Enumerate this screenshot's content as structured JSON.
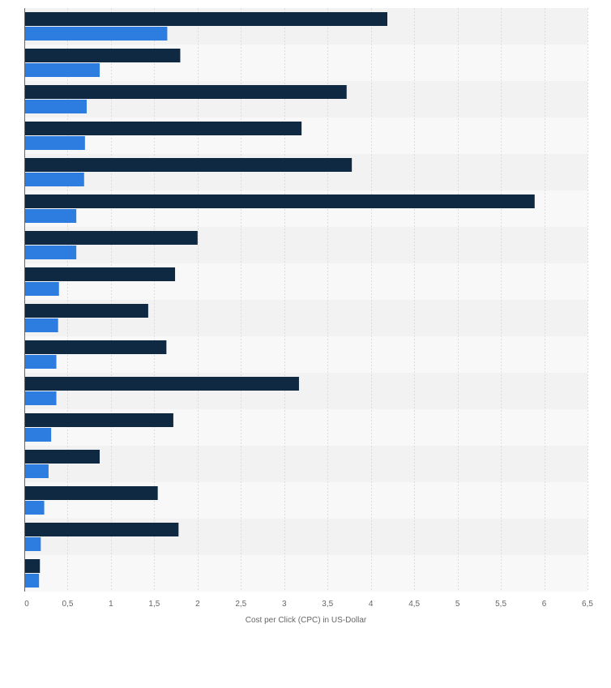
{
  "chart_data": {
    "type": "bar",
    "orientation": "horizontal",
    "xlabel": "Cost per Click (CPC) in US-Dollar",
    "xlim": [
      0,
      6.5
    ],
    "x_ticks": [
      "0",
      "0,5",
      "1",
      "1,5",
      "2",
      "2,5",
      "3",
      "3,5",
      "4",
      "4,5",
      "5",
      "5,5",
      "6",
      "6,5"
    ],
    "grid": "vertical",
    "series": [
      {
        "color": "#0f2942",
        "values": [
          4.19,
          1.8,
          3.72,
          3.2,
          3.78,
          5.89,
          2.0,
          1.74,
          1.43,
          1.64,
          3.17,
          1.72,
          0.87,
          1.54,
          1.78,
          0.18
        ]
      },
      {
        "color": "#2d7de0",
        "values": [
          1.65,
          0.87,
          0.72,
          0.7,
          0.69,
          0.6,
          0.6,
          0.4,
          0.39,
          0.37,
          0.37,
          0.31,
          0.28,
          0.23,
          0.19,
          0.17
        ]
      }
    ],
    "band_colors": [
      "#f2f2f2",
      "#f8f8f8"
    ],
    "grid_color": "#dcdcdc"
  }
}
